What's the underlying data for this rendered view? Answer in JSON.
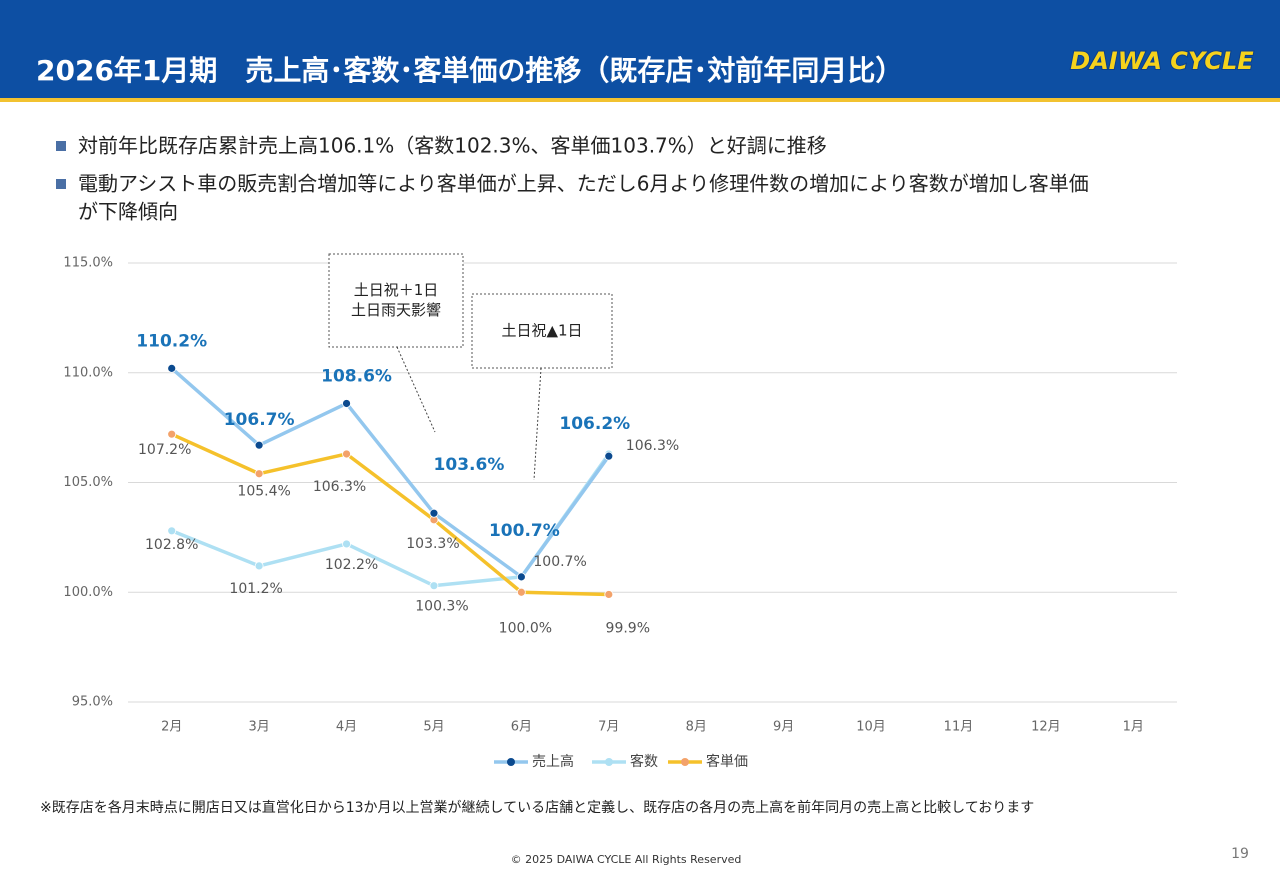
{
  "header": {
    "title": "2026年1月期　売上高･客数･客単価の推移（既存店･対前年同月比）",
    "logo": "DAIWA CYCLE"
  },
  "bullets": [
    "対前年比既存店累計売上高106.1%（客数102.3%、客単価103.7%）と好調に推移",
    [
      "電動アシスト車の販売割合増加等により客単価が上昇、ただし6月より修理件数の増加により客数が増加し客単価",
      "が下降傾向"
    ]
  ],
  "chart_data": {
    "type": "line",
    "categories": [
      "2月",
      "3月",
      "4月",
      "5月",
      "6月",
      "7月",
      "8月",
      "9月",
      "10月",
      "11月",
      "12月",
      "1月"
    ],
    "series": [
      {
        "name": "売上高",
        "color": "#93c7ee",
        "marker_color": "#0b4a8f",
        "values": [
          110.2,
          106.7,
          108.6,
          103.6,
          100.7,
          106.2,
          null,
          null,
          null,
          null,
          null,
          null
        ],
        "value_labels": [
          "110.2%",
          "106.7%",
          "108.6%",
          "103.6%",
          "100.7%",
          "106.2%",
          null,
          null,
          null,
          null,
          null,
          null
        ]
      },
      {
        "name": "客数",
        "color": "#aee0f3",
        "marker_color": "#aee0f3",
        "values": [
          102.8,
          101.2,
          102.2,
          100.3,
          100.7,
          106.3,
          null,
          null,
          null,
          null,
          null,
          null
        ],
        "value_labels": [
          "102.8%",
          "101.2%",
          "102.2%",
          "100.3%",
          "100.7%",
          "106.3%",
          null,
          null,
          null,
          null,
          null,
          null
        ]
      },
      {
        "name": "客単価",
        "color": "#f5c12b",
        "marker_color": "#f3a26a",
        "values": [
          107.2,
          105.4,
          106.3,
          103.3,
          100.0,
          99.9,
          null,
          null,
          null,
          null,
          null,
          null
        ],
        "value_labels": [
          "107.2%",
          "105.4%",
          "106.3%",
          "103.3%",
          "100.0%",
          "99.9%",
          null,
          null,
          null,
          null,
          null,
          null
        ]
      }
    ],
    "ylim": [
      95,
      115
    ],
    "yticks": [
      {
        "value": 95,
        "label": "95.0%"
      },
      {
        "value": 100,
        "label": "100.0%"
      },
      {
        "value": 105,
        "label": "105.0%"
      },
      {
        "value": 110,
        "label": "110.0%"
      },
      {
        "value": 115,
        "label": "115.0%"
      }
    ],
    "grid": true,
    "legend": "bottom",
    "annotations": [
      [
        "土日祝＋1日",
        "土日雨天影響"
      ],
      [
        "土日祝▲1日"
      ]
    ]
  },
  "footnote": "※既存店を各月末時点に開店日又は直営化日から13か月以上営業が継続している店舗と定義し、既存店の各月の売上高を前年同月の売上高と比較しております",
  "copyright": "© 2025 DAIWA CYCLE All Rights Reserved",
  "page_number": "19"
}
